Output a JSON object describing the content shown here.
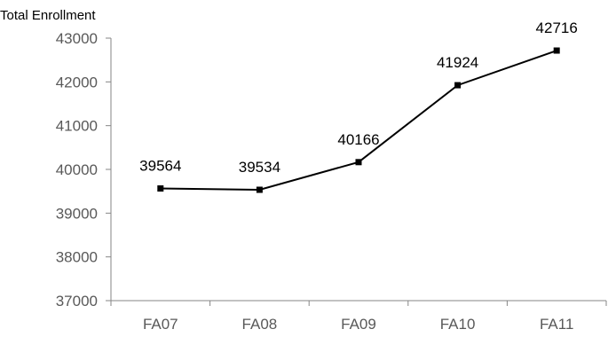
{
  "chart_data": {
    "type": "line",
    "ylabel": "Total Enrollment",
    "categories": [
      "FA07",
      "FA08",
      "FA09",
      "FA10",
      "FA11"
    ],
    "series": [
      {
        "values": [
          39564,
          39534,
          40166,
          41924,
          42716
        ]
      }
    ],
    "data_labels": [
      "39564",
      "39534",
      "40166",
      "41924",
      "42716"
    ],
    "ylim": [
      37000,
      43000
    ],
    "y_ticks": [
      43000,
      42000,
      41000,
      40000,
      39000,
      38000,
      37000
    ],
    "y_tick_labels": [
      "43000",
      "42000",
      "41000",
      "40000",
      "39000",
      "38000",
      "37000"
    ],
    "grid": false,
    "legend": "none",
    "colors": {
      "line": "#000000",
      "marker": "#000000",
      "axis": "#868686",
      "tick_text": "#595959"
    }
  }
}
